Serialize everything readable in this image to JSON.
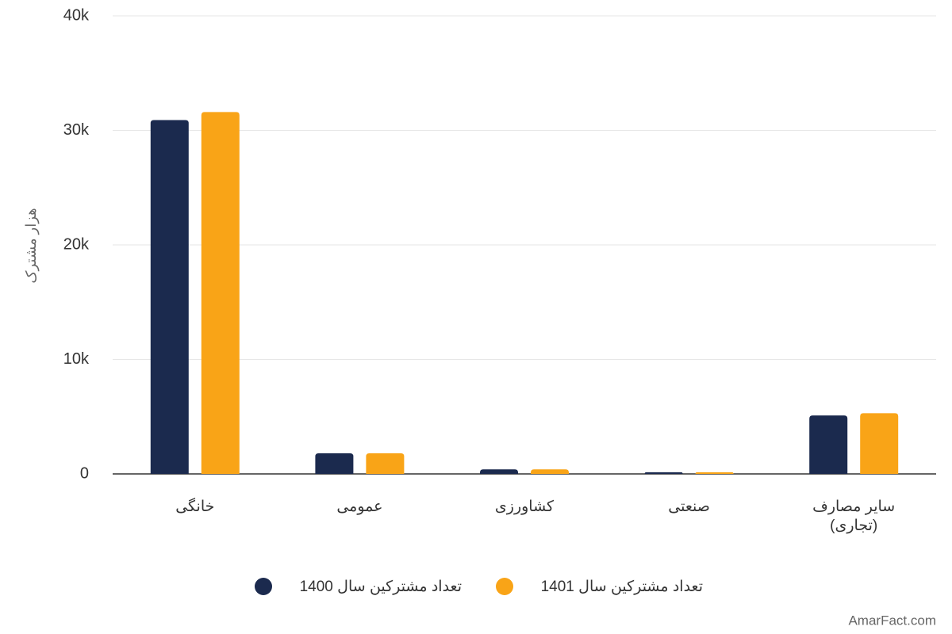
{
  "chart_data": {
    "type": "bar",
    "y_label": "هزار مشترک",
    "categories": [
      "خانگی",
      "عمومی",
      "کشاورزی",
      "صنعتی",
      "سایر مصارف (تجاری)"
    ],
    "series": [
      {
        "name": "تعداد مشترکین سال 1400",
        "color": "#1b2a4e",
        "values": [
          30900,
          1800,
          400,
          150,
          5100
        ]
      },
      {
        "name": "تعداد مشترکین سال 1401",
        "color": "#f9a417",
        "values": [
          31600,
          1800,
          400,
          150,
          5300
        ]
      }
    ],
    "ylim": [
      0,
      40000
    ],
    "yticks": [
      0,
      {
        "value": 10000,
        "label": "10k"
      },
      {
        "value": 20000,
        "label": "20k"
      },
      {
        "value": 30000,
        "label": "30k"
      },
      {
        "value": 40000,
        "label": "40k"
      }
    ],
    "grid": true,
    "legend": "bottom",
    "watermark": "AmarFact.com"
  }
}
